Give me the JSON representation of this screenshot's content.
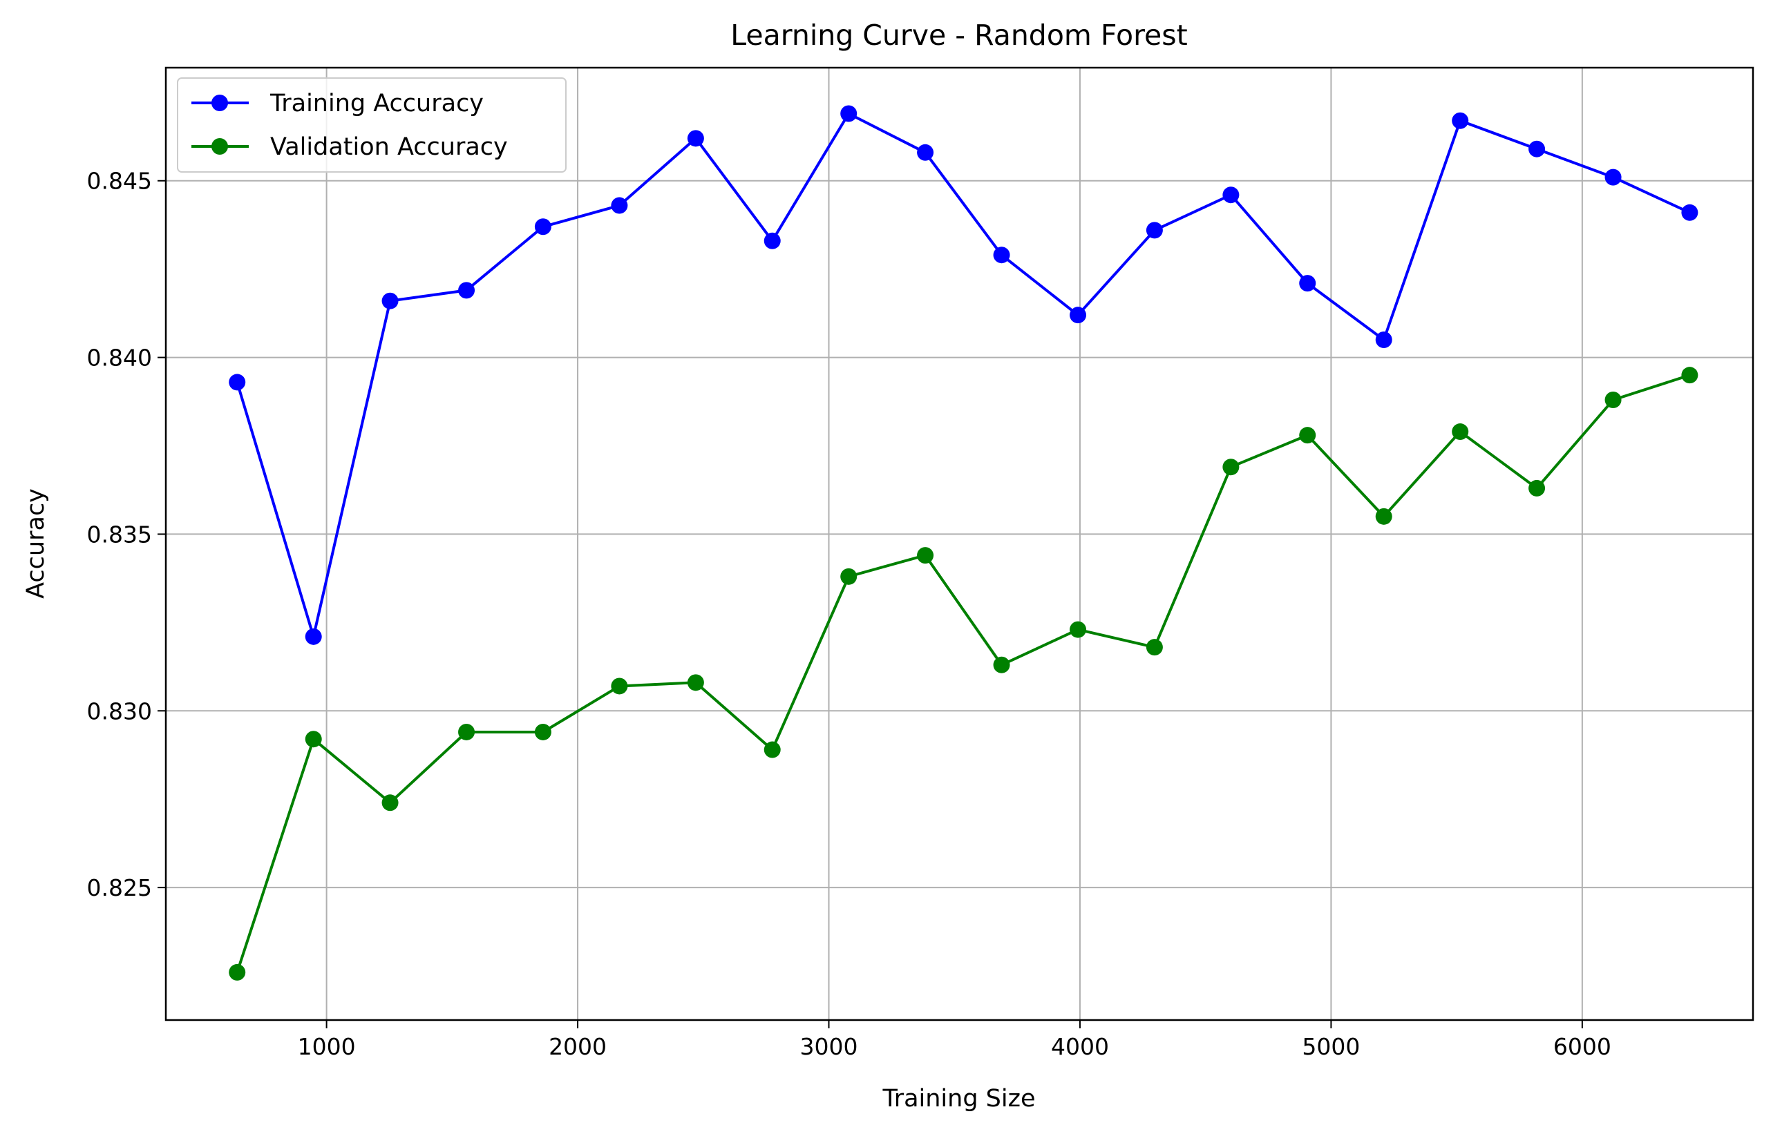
{
  "chart_data": {
    "type": "line",
    "title": "Learning Curve - Random Forest",
    "xlabel": "Training Size",
    "ylabel": "Accuracy",
    "xlim": [
      360,
      6680
    ],
    "ylim": [
      0.82125,
      0.8482
    ],
    "xticks": [
      {
        "value": 1000,
        "label": "1000"
      },
      {
        "value": 2000,
        "label": "2000"
      },
      {
        "value": 3000,
        "label": "3000"
      },
      {
        "value": 4000,
        "label": "4000"
      },
      {
        "value": 5000,
        "label": "5000"
      },
      {
        "value": 6000,
        "label": "6000"
      }
    ],
    "yticks": [
      {
        "value": 0.825,
        "label": "0.825"
      },
      {
        "value": 0.83,
        "label": "0.830"
      },
      {
        "value": 0.835,
        "label": "0.835"
      },
      {
        "value": 0.84,
        "label": "0.840"
      },
      {
        "value": 0.845,
        "label": "0.845"
      }
    ],
    "grid": true,
    "legend_position": "top-left",
    "x": [
      644,
      948,
      1253,
      1557,
      1862,
      2166,
      2470,
      2775,
      3079,
      3384,
      3688,
      3992,
      4297,
      4601,
      4906,
      5210,
      5514,
      5819,
      6123,
      6428
    ],
    "series": [
      {
        "name": "Training Accuracy",
        "color": "#0000ff",
        "marker": "circle",
        "values": [
          0.8393,
          0.8321,
          0.8416,
          0.8419,
          0.8437,
          0.8443,
          0.8462,
          0.8433,
          0.8469,
          0.8458,
          0.8429,
          0.8412,
          0.8436,
          0.8446,
          0.8421,
          0.8405,
          0.8467,
          0.8459,
          0.8451,
          0.8441
        ]
      },
      {
        "name": "Validation Accuracy",
        "color": "#008000",
        "marker": "circle",
        "values": [
          0.8226,
          0.8292,
          0.8274,
          0.8294,
          0.8294,
          0.8307,
          0.8308,
          0.8289,
          0.8338,
          0.8344,
          0.8313,
          0.8323,
          0.8318,
          0.8369,
          0.8378,
          0.8355,
          0.8379,
          0.8363,
          0.8388,
          0.8395
        ]
      }
    ]
  }
}
